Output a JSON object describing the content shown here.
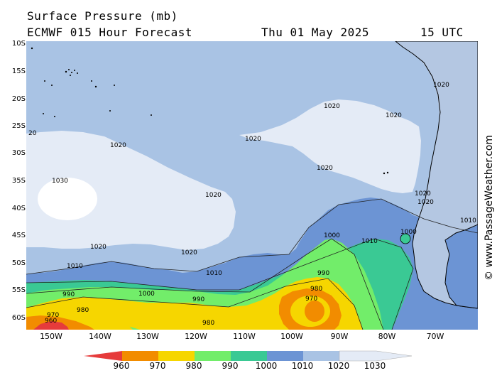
{
  "header": {
    "line1": "Surface Pressure (mb)",
    "model": "ECMWF 015 Hour Forecast",
    "date": "Thu 01 May 2025",
    "time": "15 UTC"
  },
  "axes": {
    "lat_labels": [
      "10S",
      "15S",
      "20S",
      "25S",
      "30S",
      "35S",
      "40S",
      "45S",
      "50S",
      "55S",
      "60S"
    ],
    "lon_labels": [
      "150W",
      "140W",
      "130W",
      "120W",
      "110W",
      "100W",
      "90W",
      "80W",
      "70W"
    ]
  },
  "contour_labels": {
    "c1030_west": "1030",
    "c1020_a": "1020",
    "c1020_b": "1020",
    "c1020_c": "1020",
    "c1020_d": "1020",
    "c1020_e": "1020",
    "c1020_f": "1020",
    "c1020_g": "1020",
    "c1020_h": "1020",
    "c1020_i": "1020",
    "c1020_j": "1020",
    "c1020_k": "1020",
    "c1020_edge": "20",
    "c1010_a": "1010",
    "c1010_b": "1010",
    "c1010_c": "1010",
    "c1010_d": "1010",
    "c1000_a": "1000",
    "c1000_b": "1000",
    "c1000_c": "1000",
    "c990_a": "990",
    "c990_b": "990",
    "c990_c": "990",
    "c980_a": "980",
    "c980_b": "980",
    "c980_c": "980",
    "c970_a": "970",
    "c970_b": "970",
    "c960": "960"
  },
  "colorbar": {
    "labels": [
      "960",
      "970",
      "980",
      "990",
      "1000",
      "1010",
      "1020",
      "1030"
    ],
    "colors": [
      "#e63b3b",
      "#f28c00",
      "#f6d600",
      "#72ed6a",
      "#3ac994",
      "#6c94d4",
      "#a9c3e4",
      "#e4ebf6"
    ]
  },
  "colors": {
    "band_lt_980": "#f28c00",
    "band_980_990": "#f6d600",
    "band_990_1000": "#72ed6a",
    "band_1000_1010": "#3ac994",
    "band_1010_1020": "#6c94d4",
    "band_1020_1030": "#a9c3e4",
    "band_gt_1030": "#e4ebf6",
    "band_960": "#e63b3b",
    "land": "#b4c7e2"
  },
  "credit": "© www.PassageWeather.com"
}
